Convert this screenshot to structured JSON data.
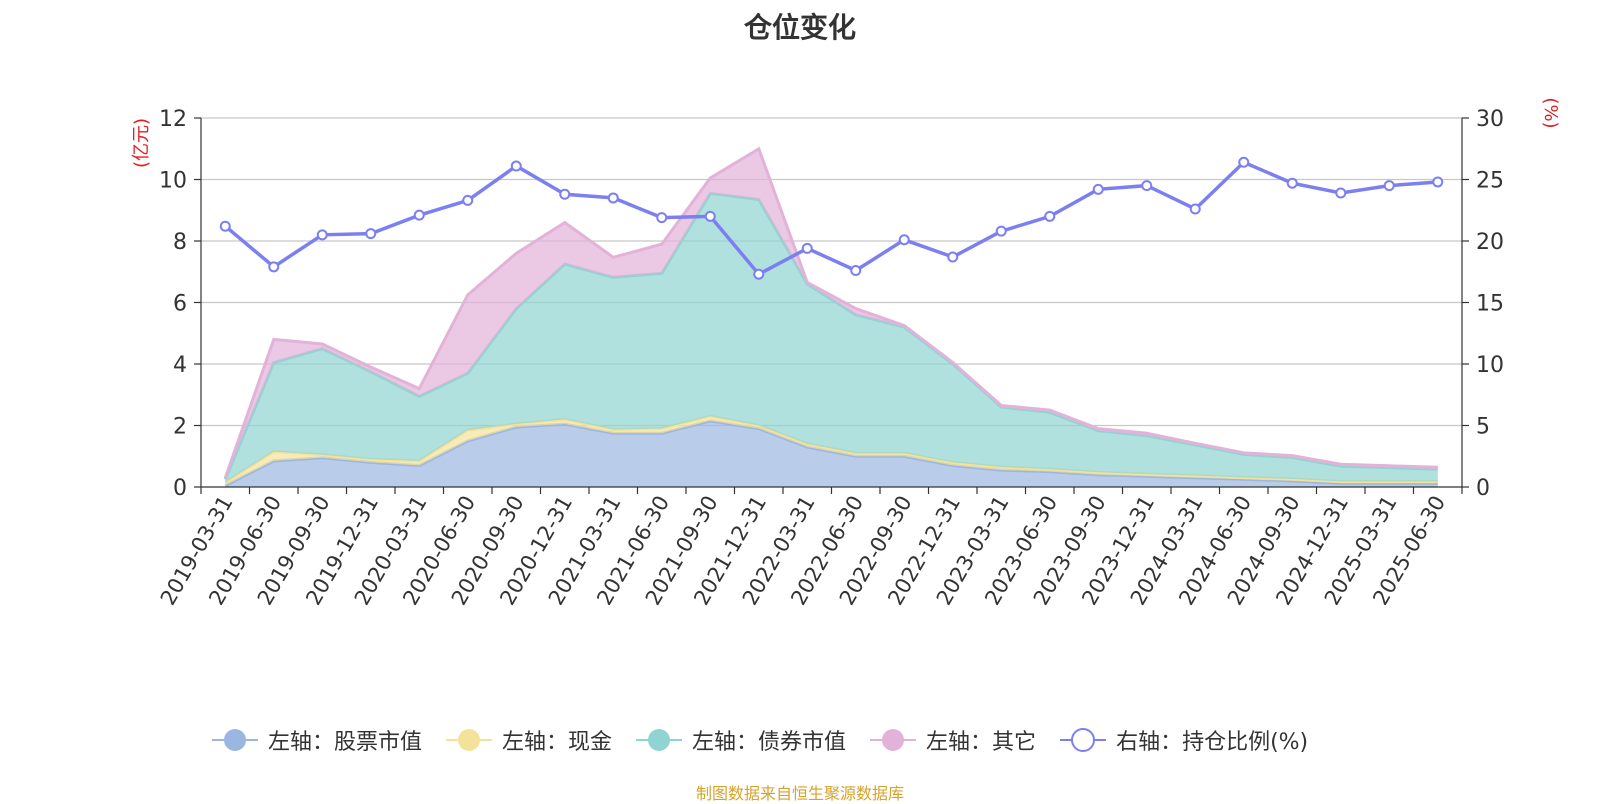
{
  "title": "仓位变化",
  "source_note": "制图数据来自恒生聚源数据库",
  "colors": {
    "stock": "#9bb6e0",
    "cash": "#f5e29a",
    "bond": "#8fd4d2",
    "other": "#e3b2d8",
    "ratio": "#7b7ff0",
    "axis_unit": "#e02020",
    "grid": "#c8c8c8",
    "text": "#333333"
  },
  "legend": [
    {
      "label": "左轴：股票市值",
      "key": "stock"
    },
    {
      "label": "左轴：现金",
      "key": "cash"
    },
    {
      "label": "左轴：债券市值",
      "key": "bond"
    },
    {
      "label": "左轴：其它",
      "key": "other"
    },
    {
      "label": "右轴：持仓比例(%)",
      "key": "ratio"
    }
  ],
  "chart_data": {
    "type": "area",
    "stacked": true,
    "title": "仓位变化",
    "left_axis": {
      "unit_label": "(亿元)",
      "ylim": [
        0,
        12
      ],
      "ticks": [
        0,
        2,
        4,
        6,
        8,
        10,
        12
      ]
    },
    "right_axis": {
      "unit_label": "(%)",
      "ylim": [
        0,
        30
      ],
      "ticks": [
        0,
        5,
        10,
        15,
        20,
        25,
        30
      ]
    },
    "categories": [
      "2019-03-31",
      "2019-06-30",
      "2019-09-30",
      "2019-12-31",
      "2020-03-31",
      "2020-06-30",
      "2020-09-30",
      "2020-12-31",
      "2021-03-31",
      "2021-06-30",
      "2021-09-30",
      "2021-12-31",
      "2022-03-31",
      "2022-06-30",
      "2022-09-30",
      "2022-12-31",
      "2023-03-31",
      "2023-06-30",
      "2023-09-30",
      "2023-12-31",
      "2024-03-31",
      "2024-06-30",
      "2024-09-30",
      "2024-12-31",
      "2025-03-31",
      "2025-06-30"
    ],
    "series": [
      {
        "name": "左轴：股票市值",
        "axis": "left",
        "type": "area",
        "values": [
          0.05,
          0.85,
          0.95,
          0.8,
          0.7,
          1.5,
          1.95,
          2.05,
          1.75,
          1.75,
          2.15,
          1.9,
          1.3,
          1.0,
          1.0,
          0.7,
          0.55,
          0.5,
          0.4,
          0.35,
          0.3,
          0.25,
          0.2,
          0.12,
          0.12,
          0.12
        ]
      },
      {
        "name": "左轴：现金",
        "axis": "left",
        "type": "area",
        "values": [
          0.1,
          0.3,
          0.1,
          0.1,
          0.15,
          0.35,
          0.1,
          0.15,
          0.12,
          0.15,
          0.15,
          0.1,
          0.1,
          0.1,
          0.1,
          0.1,
          0.1,
          0.08,
          0.08,
          0.07,
          0.07,
          0.06,
          0.06,
          0.06,
          0.06,
          0.06
        ]
      },
      {
        "name": "左轴：债券市值",
        "axis": "left",
        "type": "area",
        "values": [
          0.1,
          2.9,
          3.45,
          2.85,
          2.1,
          1.85,
          3.75,
          5.05,
          4.95,
          5.05,
          7.25,
          7.35,
          5.2,
          4.5,
          4.1,
          3.2,
          1.95,
          1.85,
          1.35,
          1.25,
          1.0,
          0.75,
          0.7,
          0.5,
          0.45,
          0.4
        ]
      },
      {
        "name": "左轴：其它",
        "axis": "left",
        "type": "area",
        "values": [
          0.05,
          0.75,
          0.15,
          0.15,
          0.25,
          2.55,
          1.8,
          1.35,
          0.65,
          0.95,
          0.5,
          1.65,
          0.05,
          0.2,
          0.05,
          0.05,
          0.05,
          0.07,
          0.07,
          0.08,
          0.05,
          0.05,
          0.06,
          0.06,
          0.06,
          0.06
        ]
      },
      {
        "name": "右轴：持仓比例(%)",
        "axis": "right",
        "type": "line",
        "values": [
          21.2,
          17.9,
          20.5,
          20.6,
          22.1,
          23.3,
          26.1,
          23.8,
          23.5,
          21.9,
          22.0,
          17.3,
          19.4,
          17.6,
          20.1,
          18.7,
          20.8,
          22.0,
          24.2,
          24.5,
          22.6,
          26.4,
          24.7,
          23.9,
          24.5,
          24.8
        ]
      }
    ],
    "grid": true,
    "legend_position": "bottom"
  }
}
